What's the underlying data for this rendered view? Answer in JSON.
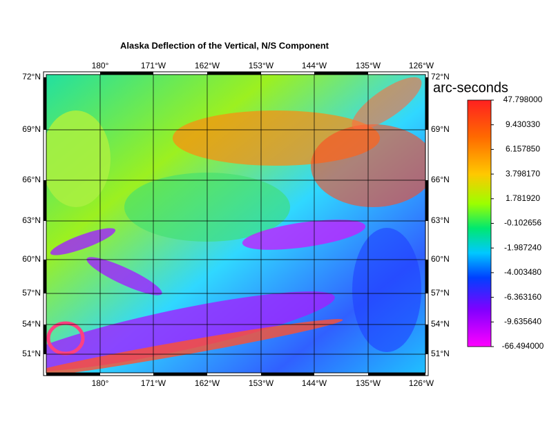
{
  "title": "Alaska Deflection of the Vertical, N/S Component",
  "map": {
    "top_labels": [
      "180°",
      "171°W",
      "162°W",
      "153°W",
      "144°W",
      "135°W",
      "126°W"
    ],
    "bottom_labels": [
      "180°",
      "171°W",
      "162°W",
      "153°W",
      "144°W",
      "135°W",
      "126°W"
    ],
    "left_labels": [
      "72°N",
      "69°N",
      "66°N",
      "63°N",
      "60°N",
      "57°N",
      "54°N",
      "51°N"
    ],
    "right_labels": [
      "72°N",
      "69°N",
      "66°N",
      "63°N",
      "60°N",
      "57°N",
      "54°N",
      "51°N"
    ]
  },
  "colorbar": {
    "title": "arc-seconds",
    "labels": [
      "47.798000",
      "9.430330",
      "6.157850",
      "3.798170",
      "1.781920",
      "-0.102656",
      "-1.987240",
      "-4.003480",
      "-6.363160",
      "-9.635640",
      "-66.494000"
    ]
  }
}
